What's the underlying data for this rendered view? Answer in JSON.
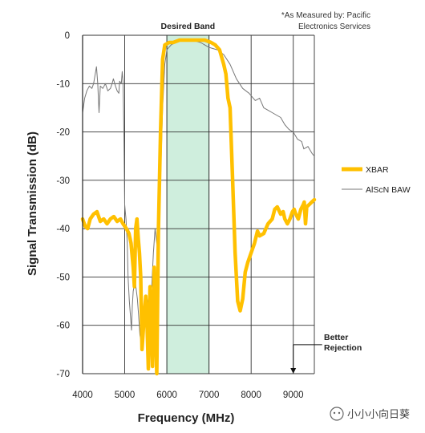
{
  "chart_data": {
    "type": "line",
    "xlabel": "Frequency (MHz)",
    "ylabel": "Signal Transmission (dB)",
    "xlim": [
      4000,
      9500
    ],
    "ylim": [
      -70,
      0
    ],
    "x_ticks": [
      "4000",
      "5000",
      "6000",
      "7000",
      "8000",
      "9000"
    ],
    "y_ticks": [
      "0",
      "-10",
      "-20",
      "-30",
      "-40",
      "-50",
      "-60",
      "-70"
    ],
    "grid": true,
    "legend_position": "right",
    "desired_band": {
      "label": "Desired Band",
      "x_start": 6000,
      "x_end": 7000,
      "color": "#cfeedd"
    },
    "source_note": [
      "*As Measured by: Pacific",
      "Electronics Services"
    ],
    "annotation": {
      "lines": [
        "Better",
        "Rejection"
      ],
      "arrow_x": 9000,
      "arrow_from_y": -64,
      "arrow_to_y": -70
    },
    "series": [
      {
        "name": "XBAR",
        "color": "#ffc000",
        "points": [
          [
            4000,
            -38
          ],
          [
            4060,
            -39.5
          ],
          [
            4120,
            -40
          ],
          [
            4180,
            -38
          ],
          [
            4260,
            -37
          ],
          [
            4340,
            -36.5
          ],
          [
            4420,
            -38.5
          ],
          [
            4500,
            -38
          ],
          [
            4580,
            -39
          ],
          [
            4660,
            -38
          ],
          [
            4740,
            -37.5
          ],
          [
            4820,
            -38.5
          ],
          [
            4900,
            -38
          ],
          [
            4960,
            -39
          ],
          [
            5040,
            -40
          ],
          [
            5100,
            -41
          ],
          [
            5150,
            -43
          ],
          [
            5200,
            -48
          ],
          [
            5230,
            -52
          ],
          [
            5260,
            -40
          ],
          [
            5290,
            -38
          ],
          [
            5320,
            -42
          ],
          [
            5350,
            -45
          ],
          [
            5380,
            -50
          ],
          [
            5410,
            -65
          ],
          [
            5440,
            -61
          ],
          [
            5470,
            -57
          ],
          [
            5500,
            -54
          ],
          [
            5530,
            -60
          ],
          [
            5560,
            -69
          ],
          [
            5600,
            -52
          ],
          [
            5630,
            -58
          ],
          [
            5660,
            -68.5
          ],
          [
            5700,
            -48
          ],
          [
            5730,
            -60
          ],
          [
            5760,
            -70
          ],
          [
            5800,
            -40
          ],
          [
            5850,
            -20
          ],
          [
            5900,
            -5
          ],
          [
            5950,
            -2
          ],
          [
            6050,
            -1.5
          ],
          [
            6150,
            -1.5
          ],
          [
            6300,
            -1
          ],
          [
            6500,
            -1
          ],
          [
            6700,
            -1
          ],
          [
            6900,
            -1
          ],
          [
            7050,
            -1.5
          ],
          [
            7150,
            -2
          ],
          [
            7250,
            -3
          ],
          [
            7350,
            -6
          ],
          [
            7400,
            -8
          ],
          [
            7450,
            -13
          ],
          [
            7500,
            -15
          ],
          [
            7560,
            -30
          ],
          [
            7620,
            -45
          ],
          [
            7680,
            -55
          ],
          [
            7740,
            -57
          ],
          [
            7800,
            -54.5
          ],
          [
            7860,
            -49
          ],
          [
            7920,
            -47
          ],
          [
            8000,
            -45
          ],
          [
            8080,
            -43
          ],
          [
            8150,
            -40.5
          ],
          [
            8200,
            -41.5
          ],
          [
            8300,
            -41
          ],
          [
            8400,
            -39
          ],
          [
            8500,
            -38
          ],
          [
            8560,
            -36
          ],
          [
            8620,
            -35.5
          ],
          [
            8700,
            -37
          ],
          [
            8760,
            -36.5
          ],
          [
            8800,
            -38
          ],
          [
            8860,
            -39
          ],
          [
            8920,
            -38
          ],
          [
            8980,
            -36.5
          ],
          [
            9020,
            -36
          ],
          [
            9060,
            -37
          ],
          [
            9120,
            -38
          ],
          [
            9180,
            -36
          ],
          [
            9240,
            -35
          ],
          [
            9260,
            -34.5
          ],
          [
            9290,
            -39
          ],
          [
            9320,
            -35.5
          ],
          [
            9380,
            -35
          ],
          [
            9440,
            -34.5
          ],
          [
            9500,
            -34
          ]
        ]
      },
      {
        "name": "AlScN BAW",
        "color": "#777777",
        "points": [
          [
            4000,
            -16
          ],
          [
            4050,
            -13
          ],
          [
            4100,
            -11.5
          ],
          [
            4160,
            -10.5
          ],
          [
            4220,
            -11
          ],
          [
            4260,
            -10
          ],
          [
            4300,
            -8
          ],
          [
            4330,
            -6.5
          ],
          [
            4360,
            -10
          ],
          [
            4390,
            -16
          ],
          [
            4420,
            -10.5
          ],
          [
            4480,
            -11
          ],
          [
            4540,
            -10
          ],
          [
            4600,
            -11.5
          ],
          [
            4660,
            -11
          ],
          [
            4700,
            -10
          ],
          [
            4730,
            -9
          ],
          [
            4780,
            -10.5
          ],
          [
            4820,
            -11.5
          ],
          [
            4860,
            -12
          ],
          [
            4880,
            -9.5
          ],
          [
            4920,
            -10
          ],
          [
            4940,
            -7.5
          ],
          [
            4960,
            -9.5
          ],
          [
            4980,
            -20
          ],
          [
            5000,
            -35
          ],
          [
            5030,
            -38
          ],
          [
            5060,
            -43
          ],
          [
            5080,
            -50
          ],
          [
            5110,
            -55
          ],
          [
            5140,
            -58.5
          ],
          [
            5160,
            -61
          ],
          [
            5180,
            -56
          ],
          [
            5200,
            -53
          ],
          [
            5220,
            -52
          ],
          [
            5250,
            -51
          ],
          [
            5300,
            -54.5
          ],
          [
            5330,
            -58
          ],
          [
            5360,
            -62
          ],
          [
            5400,
            -64
          ],
          [
            5450,
            -60
          ],
          [
            5500,
            -57
          ],
          [
            5550,
            -55
          ],
          [
            5600,
            -53
          ],
          [
            5640,
            -52
          ],
          [
            5680,
            -45
          ],
          [
            5720,
            -40
          ],
          [
            5760,
            -43
          ],
          [
            5800,
            -45
          ],
          [
            5850,
            -30
          ],
          [
            5900,
            -15
          ],
          [
            5950,
            -6
          ],
          [
            6000,
            -3
          ],
          [
            6100,
            -2
          ],
          [
            6200,
            -1.5
          ],
          [
            6400,
            -1
          ],
          [
            6600,
            -1
          ],
          [
            6800,
            -1.5
          ],
          [
            7000,
            -2.5
          ],
          [
            7200,
            -3
          ],
          [
            7350,
            -4
          ],
          [
            7500,
            -6
          ],
          [
            7650,
            -9
          ],
          [
            7800,
            -11
          ],
          [
            7950,
            -12
          ],
          [
            8100,
            -13.5
          ],
          [
            8200,
            -13
          ],
          [
            8300,
            -15
          ],
          [
            8400,
            -15.5
          ],
          [
            8500,
            -16
          ],
          [
            8600,
            -16.5
          ],
          [
            8700,
            -17
          ],
          [
            8800,
            -18.5
          ],
          [
            8900,
            -19.5
          ],
          [
            9000,
            -20
          ],
          [
            9100,
            -21.5
          ],
          [
            9200,
            -22
          ],
          [
            9250,
            -23.5
          ],
          [
            9350,
            -23
          ],
          [
            9450,
            -24.5
          ],
          [
            9500,
            -25
          ]
        ]
      }
    ]
  },
  "watermark": "小小小向日葵"
}
